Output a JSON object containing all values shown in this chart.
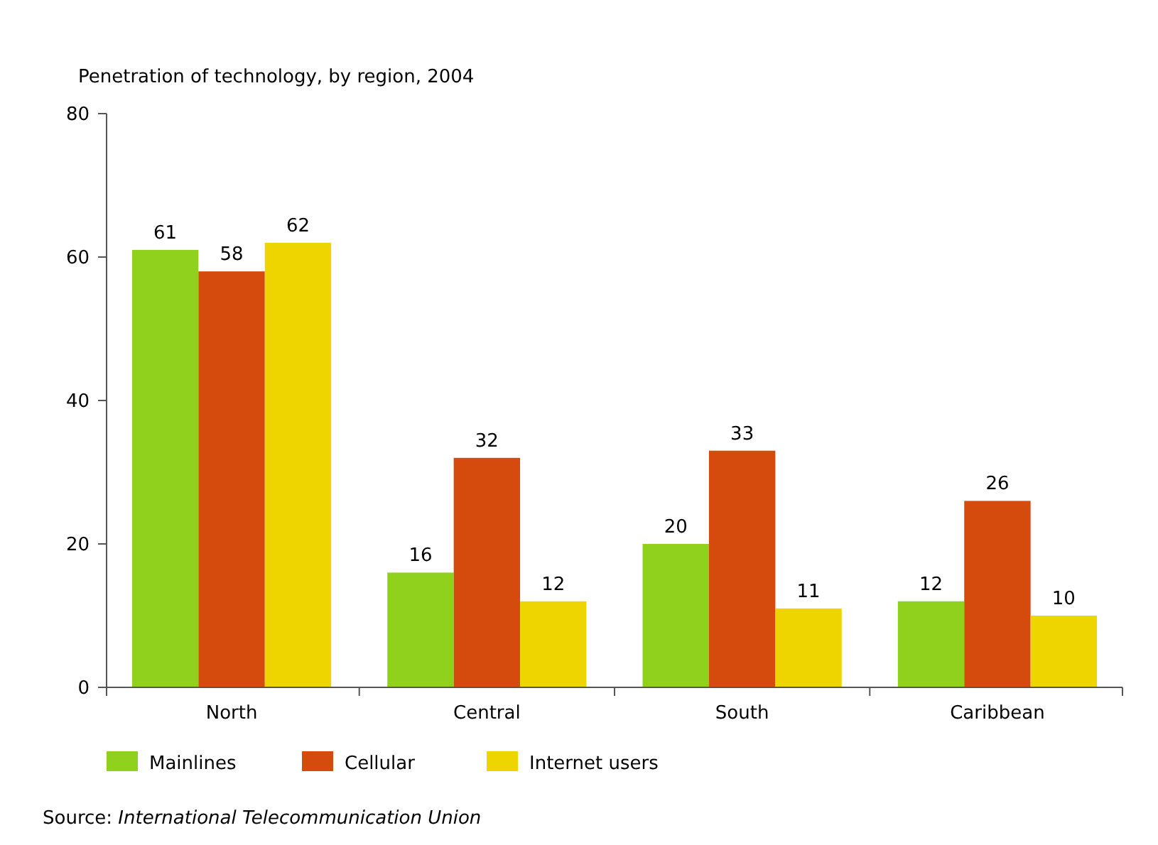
{
  "chart_data": {
    "type": "bar",
    "title": "Penetration of technology, by region, 2004",
    "categories": [
      "North",
      "Central",
      "South",
      "Caribbean"
    ],
    "series": [
      {
        "name": "Mainlines",
        "color": "#8fd11d",
        "values": [
          61,
          16,
          20,
          12
        ]
      },
      {
        "name": "Cellular",
        "color": "#d54b0d",
        "values": [
          58,
          32,
          33,
          26
        ]
      },
      {
        "name": "Internet users",
        "color": "#efd500",
        "values": [
          62,
          12,
          11,
          10
        ]
      }
    ],
    "ylim": [
      0,
      80
    ],
    "yticks": [
      0,
      20,
      40,
      60,
      80
    ],
    "grid": false,
    "legend": "bottom left",
    "data_labels": true,
    "annotations": [
      "Source: International Telecommunication Union"
    ]
  }
}
